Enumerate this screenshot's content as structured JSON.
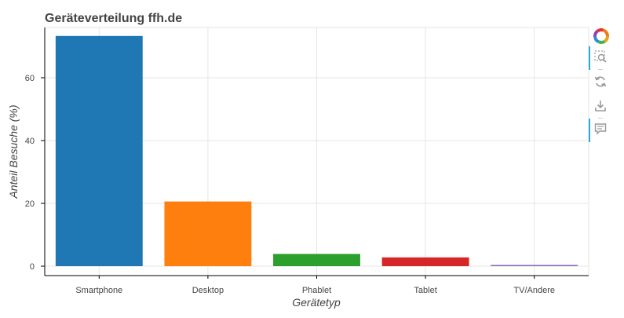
{
  "chart_data": {
    "type": "bar",
    "title": "Geräteverteilung ffh.de",
    "xlabel": "Gerätetyp",
    "ylabel": "Anteil Besuche (%)",
    "categories": [
      "Smartphone",
      "Desktop",
      "Phablet",
      "Tablet",
      "TV/Andere"
    ],
    "values": [
      73.3,
      20.6,
      3.9,
      2.8,
      0.4
    ],
    "colors": [
      "#1f77b4",
      "#ff7f0e",
      "#2ca02c",
      "#d62728",
      "#9467bd"
    ],
    "ylim": [
      -3,
      76
    ],
    "yticks": [
      0,
      20,
      40,
      60
    ],
    "grid": true,
    "legend": "none"
  },
  "toolbar": {
    "tools": [
      "bokeh-logo-icon",
      "box-zoom-icon",
      "reset-icon",
      "save-icon",
      "hover-icon"
    ]
  }
}
